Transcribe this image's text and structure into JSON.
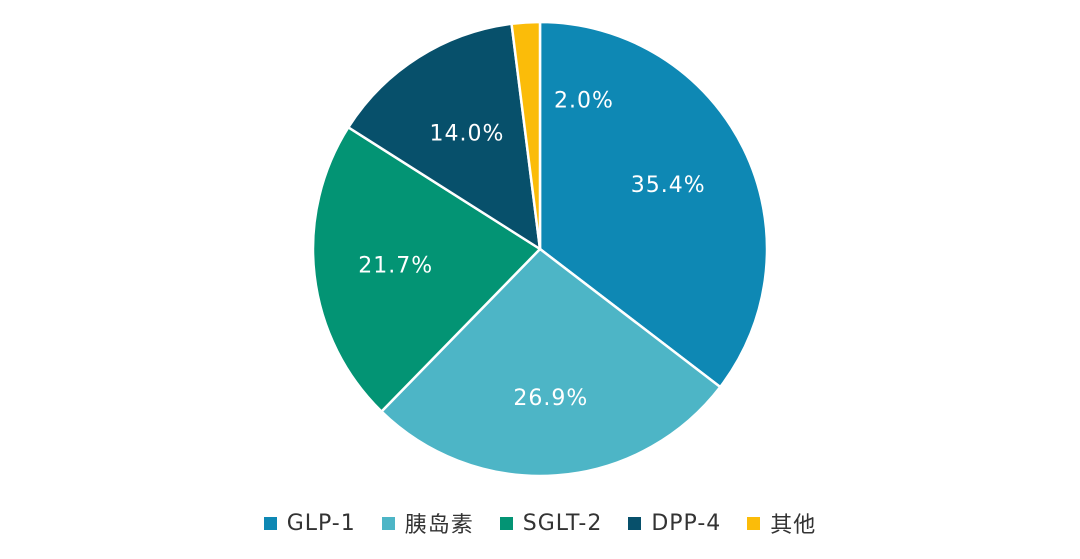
{
  "chart_data": {
    "type": "pie",
    "categories": [
      "GLP-1",
      "胰岛素",
      "SGLT-2",
      "DPP-4",
      "其他"
    ],
    "values": [
      35.4,
      26.9,
      21.7,
      14.0,
      2.0
    ],
    "data_labels": [
      "35.4%",
      "26.9%",
      "21.7%",
      "14.0%",
      "2.0%"
    ],
    "colors": [
      "#0e88b4",
      "#4db5c6",
      "#039474",
      "#07506b",
      "#fbbc09"
    ],
    "start_angle": "12 o'clock",
    "direction": "clockwise",
    "legend_position": "bottom"
  },
  "legend": {
    "items": [
      {
        "label": "GLP-1",
        "color": "#0e88b4"
      },
      {
        "label": "胰岛素",
        "color": "#4db5c6"
      },
      {
        "label": "SGLT-2",
        "color": "#039474"
      },
      {
        "label": "DPP-4",
        "color": "#07506b"
      },
      {
        "label": "其他",
        "color": "#fbbc09"
      }
    ]
  }
}
